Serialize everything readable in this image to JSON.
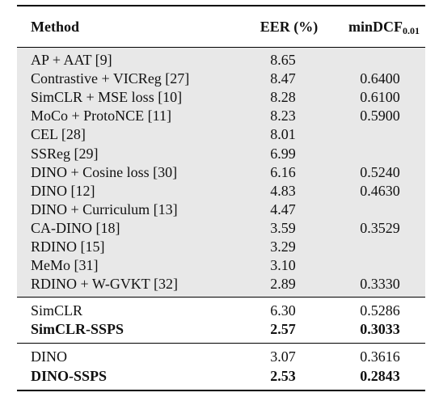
{
  "table": {
    "headers": {
      "method": "Method",
      "eer": "EER (%)",
      "mindcf_main": "minDCF",
      "mindcf_sub": "0.01"
    },
    "baselines": [
      {
        "method": "AP + AAT [9]",
        "eer": "8.65",
        "mindcf": ""
      },
      {
        "method": "Contrastive + VICReg [27]",
        "eer": "8.47",
        "mindcf": "0.6400"
      },
      {
        "method": "SimCLR + MSE loss [10]",
        "eer": "8.28",
        "mindcf": "0.6100"
      },
      {
        "method": "MoCo + ProtoNCE [11]",
        "eer": "8.23",
        "mindcf": "0.5900"
      },
      {
        "method": "CEL [28]",
        "eer": "8.01",
        "mindcf": ""
      },
      {
        "method": "SSReg [29]",
        "eer": "6.99",
        "mindcf": ""
      },
      {
        "method": "DINO + Cosine loss [30]",
        "eer": "6.16",
        "mindcf": "0.5240"
      },
      {
        "method": "DINO [12]",
        "eer": "4.83",
        "mindcf": "0.4630"
      },
      {
        "method": "DINO + Curriculum [13]",
        "eer": "4.47",
        "mindcf": ""
      },
      {
        "method": "CA-DINO [18]",
        "eer": "3.59",
        "mindcf": "0.3529"
      },
      {
        "method": "RDINO [15]",
        "eer": "3.29",
        "mindcf": ""
      },
      {
        "method": "MeMo [31]",
        "eer": "3.10",
        "mindcf": ""
      },
      {
        "method": "RDINO + W-GVKT [32]",
        "eer": "2.89",
        "mindcf": "0.3330"
      }
    ],
    "simclr_group": [
      {
        "method": "SimCLR",
        "eer": "6.30",
        "mindcf": "0.5286",
        "bold": false
      },
      {
        "method": "SimCLR-SSPS",
        "eer": "2.57",
        "mindcf": "0.3033",
        "bold": true
      }
    ],
    "dino_group": [
      {
        "method": "DINO",
        "eer": "3.07",
        "mindcf": "0.3616",
        "bold": false
      },
      {
        "method": "DINO-SSPS",
        "eer": "2.53",
        "mindcf": "0.2843",
        "bold": true
      }
    ]
  }
}
